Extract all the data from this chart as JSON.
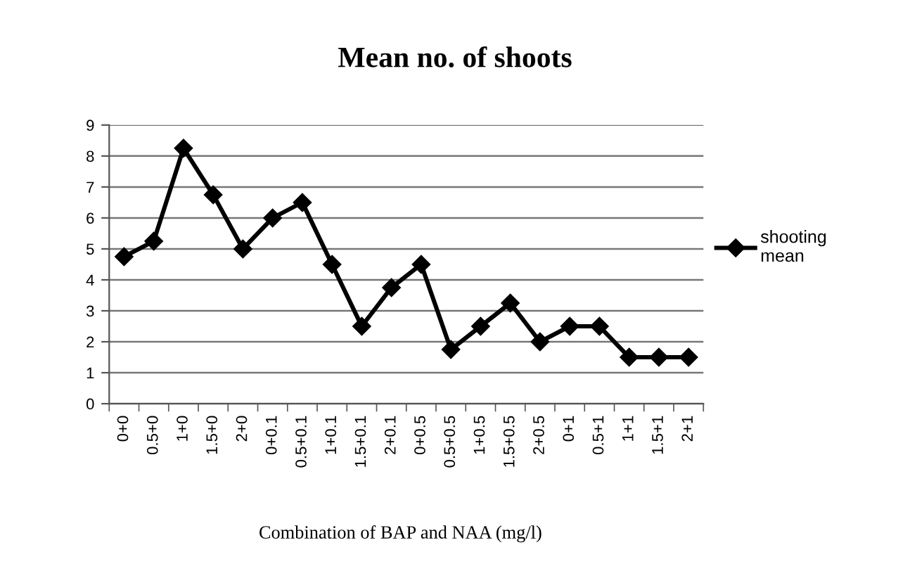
{
  "chart_data": {
    "type": "line",
    "title": "Mean no. of shoots",
    "xlabel": "Combination of BAP and NAA (mg/l)",
    "categories": [
      "0+0",
      "0.5+0",
      "1+0",
      "1.5+0",
      "2+0",
      "0+0.1",
      "0.5+0.1",
      "1+0.1",
      "1.5+0.1",
      "2+0.1",
      "0+0.5",
      "0.5+0.5",
      "1+0.5",
      "1.5+0.5",
      "2+0.5",
      "0+1",
      "0.5+1",
      "1+1",
      "1.5+1",
      "2+1"
    ],
    "series": [
      {
        "name": "shooting mean",
        "color": "#000000",
        "values": [
          4.75,
          5.25,
          8.25,
          6.75,
          5.0,
          6.0,
          6.5,
          4.5,
          2.5,
          3.75,
          4.5,
          1.75,
          2.5,
          3.25,
          2.0,
          2.5,
          2.5,
          1.5,
          1.5,
          1.5
        ]
      }
    ],
    "ylim": [
      0,
      9
    ],
    "yticks": [
      0,
      1,
      2,
      3,
      4,
      5,
      6,
      7,
      8,
      9
    ],
    "grid": "y",
    "legend": "right",
    "marker": "diamond",
    "line_style": "solid"
  }
}
